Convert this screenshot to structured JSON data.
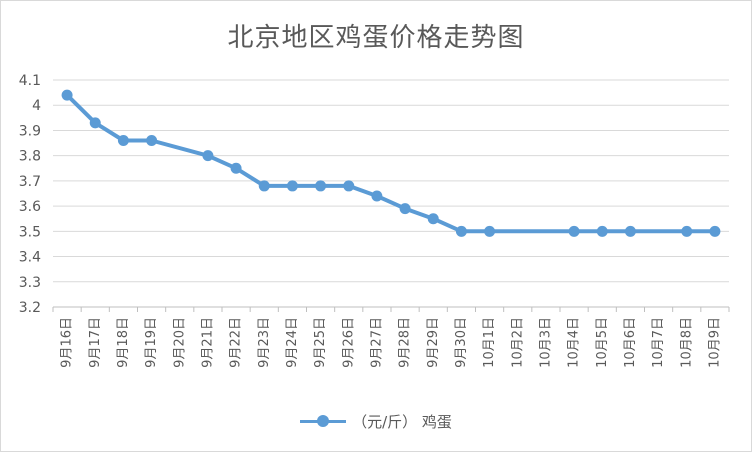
{
  "chart_data": {
    "type": "line",
    "title": "北京地区鸡蛋价格走势图",
    "categories": [
      "9月16日",
      "9月17日",
      "9月18日",
      "9月19日",
      "9月20日",
      "9月21日",
      "9月22日",
      "9月23日",
      "9月24日",
      "9月25日",
      "9月26日",
      "9月27日",
      "9月28日",
      "9月29日",
      "9月30日",
      "10月1日",
      "10月2日",
      "10月3日",
      "10月4日",
      "10月5日",
      "10月6日",
      "10月7日",
      "10月8日",
      "10月9日"
    ],
    "series": [
      {
        "name": "（元/斤） 鸡蛋",
        "values": [
          4.04,
          3.93,
          3.86,
          3.86,
          null,
          3.8,
          3.75,
          3.68,
          3.68,
          3.68,
          3.68,
          3.64,
          3.59,
          3.55,
          3.5,
          3.5,
          null,
          null,
          3.5,
          3.5,
          3.5,
          null,
          3.5,
          3.5
        ]
      }
    ],
    "yticks": [
      "3.2",
      "3.3",
      "3.4",
      "3.5",
      "3.6",
      "3.7",
      "3.8",
      "3.9",
      "4",
      "4.1"
    ],
    "ylim": [
      3.2,
      4.1
    ],
    "grid": true,
    "legend_position": "bottom",
    "line_color": "#5b9bd5"
  }
}
